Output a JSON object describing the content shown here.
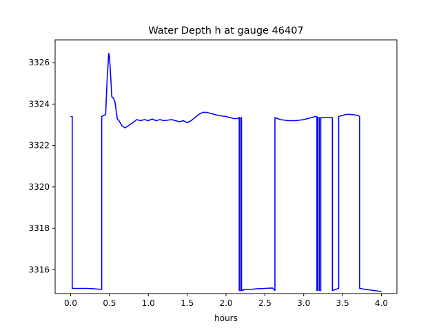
{
  "chart_data": {
    "type": "line",
    "title": "Water Depth h at gauge 46407",
    "xlabel": "hours",
    "ylabel": "",
    "xlim": [
      -0.2,
      4.2
    ],
    "ylim": [
      3314.85,
      3327.1
    ],
    "xticks": [
      0.0,
      0.5,
      1.0,
      1.5,
      2.0,
      2.5,
      3.0,
      3.5,
      4.0
    ],
    "xtick_labels": [
      "0.0",
      "0.5",
      "1.0",
      "1.5",
      "2.0",
      "2.5",
      "3.0",
      "3.5",
      "4.0"
    ],
    "yticks": [
      3316,
      3318,
      3320,
      3322,
      3324,
      3326
    ],
    "ytick_labels": [
      "3316",
      "3318",
      "3320",
      "3322",
      "3324",
      "3326"
    ],
    "grid": false,
    "series": [
      {
        "color": "#0000ff",
        "x": [
          0.0,
          0.02,
          0.02,
          0.1,
          0.2,
          0.3,
          0.4,
          0.4,
          0.45,
          0.47,
          0.49,
          0.5,
          0.52,
          0.53,
          0.55,
          0.57,
          0.6,
          0.63,
          0.66,
          0.7,
          0.74,
          0.8,
          0.85,
          0.9,
          0.95,
          1.0,
          1.05,
          1.1,
          1.15,
          1.2,
          1.3,
          1.4,
          1.45,
          1.5,
          1.55,
          1.6,
          1.65,
          1.7,
          1.75,
          1.8,
          1.9,
          2.0,
          2.05,
          2.1,
          2.15,
          2.17,
          2.17,
          2.19,
          2.19,
          2.2,
          2.2,
          2.22,
          2.22,
          2.3,
          2.4,
          2.5,
          2.6,
          2.63,
          2.63,
          2.7,
          2.8,
          2.9,
          3.0,
          3.1,
          3.15,
          3.17,
          3.17,
          3.18,
          3.18,
          3.2,
          3.2,
          3.22,
          3.22,
          3.24,
          3.24,
          3.37,
          3.37,
          3.45,
          3.45,
          3.5,
          3.55,
          3.6,
          3.65,
          3.7,
          3.72,
          3.72,
          3.8,
          3.9,
          4.0
        ],
        "y": [
          3323.4,
          3323.4,
          3315.1,
          3315.1,
          3315.1,
          3315.08,
          3315.05,
          3323.4,
          3323.5,
          3325.2,
          3326.45,
          3326.3,
          3325.0,
          3324.35,
          3324.3,
          3324.1,
          3323.3,
          3323.15,
          3322.95,
          3322.85,
          3322.95,
          3323.1,
          3323.25,
          3323.2,
          3323.25,
          3323.2,
          3323.28,
          3323.2,
          3323.25,
          3323.2,
          3323.25,
          3323.15,
          3323.2,
          3323.1,
          3323.2,
          3323.35,
          3323.5,
          3323.6,
          3323.6,
          3323.55,
          3323.45,
          3323.4,
          3323.35,
          3323.3,
          3323.3,
          3323.35,
          3315.0,
          3315.0,
          3323.35,
          3323.35,
          3315.0,
          3315.0,
          3315.05,
          3315.05,
          3315.08,
          3315.1,
          3315.12,
          3315.0,
          3323.35,
          3323.25,
          3323.2,
          3323.2,
          3323.25,
          3323.35,
          3323.4,
          3323.4,
          3315.0,
          3315.0,
          3323.35,
          3323.35,
          3315.0,
          3315.0,
          3323.35,
          3323.35,
          3323.35,
          3323.35,
          3315.0,
          3315.1,
          3323.4,
          3323.45,
          3323.5,
          3323.5,
          3323.48,
          3323.45,
          3323.4,
          3315.1,
          3315.05,
          3315.0,
          3314.95
        ]
      }
    ]
  }
}
